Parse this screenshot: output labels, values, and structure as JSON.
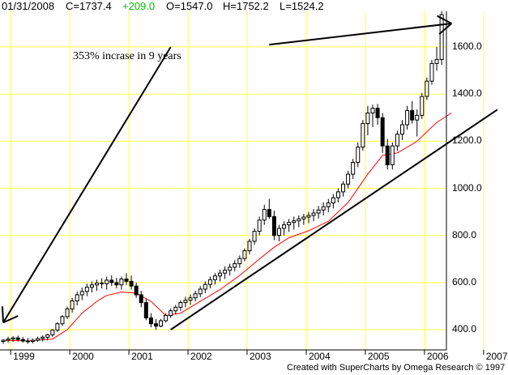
{
  "header": {
    "date": "01/31/2008",
    "close": "C=1737.4",
    "change": "+209.0",
    "open": "O=1547.0",
    "high": "H=1752.2",
    "low": "L=1524.2"
  },
  "annotation": "353% incrase in 9 years",
  "credit": "Created with SuperCharts by Omega Research © 1997",
  "colors": {
    "grid": "#ffff40",
    "candle": "#000000",
    "moving_average": "#ff0000",
    "trendline": "#000000",
    "change_text": "#00c000"
  },
  "chart_data": {
    "type": "candlestick",
    "period": "monthly",
    "x_tick_labels": [
      "1999",
      "2000",
      "2001",
      "2002",
      "2003",
      "2004",
      "2005",
      "2006",
      "2007"
    ],
    "y_tick_labels": [
      "400.0",
      "600.0",
      "800.0",
      "1000.0",
      "1200.0",
      "1400.0",
      "1600.0"
    ],
    "ylim": [
      320,
      1780
    ],
    "y_axis_side": "right",
    "grid": true,
    "start_month": "1998-11",
    "candles": [
      [
        350,
        360,
        340,
        355
      ],
      [
        355,
        370,
        345,
        360
      ],
      [
        360,
        372,
        348,
        365
      ],
      [
        365,
        375,
        350,
        358
      ],
      [
        358,
        368,
        345,
        352
      ],
      [
        352,
        365,
        340,
        350
      ],
      [
        350,
        362,
        342,
        355
      ],
      [
        355,
        370,
        348,
        362
      ],
      [
        362,
        375,
        350,
        368
      ],
      [
        368,
        382,
        355,
        378
      ],
      [
        378,
        402,
        370,
        398
      ],
      [
        398,
        432,
        390,
        425
      ],
      [
        425,
        462,
        415,
        455
      ],
      [
        455,
        498,
        445,
        488
      ],
      [
        488,
        535,
        472,
        522
      ],
      [
        522,
        562,
        502,
        548
      ],
      [
        548,
        578,
        525,
        562
      ],
      [
        562,
        595,
        542,
        580
      ],
      [
        580,
        605,
        558,
        590
      ],
      [
        590,
        612,
        565,
        598
      ],
      [
        598,
        618,
        575,
        595
      ],
      [
        595,
        625,
        570,
        610
      ],
      [
        610,
        630,
        585,
        600
      ],
      [
        600,
        620,
        575,
        590
      ],
      [
        590,
        625,
        570,
        615
      ],
      [
        615,
        640,
        590,
        605
      ],
      [
        605,
        630,
        570,
        585
      ],
      [
        585,
        600,
        535,
        548
      ],
      [
        548,
        565,
        495,
        515
      ],
      [
        515,
        530,
        440,
        450
      ],
      [
        450,
        470,
        410,
        425
      ],
      [
        425,
        445,
        400,
        415
      ],
      [
        415,
        445,
        410,
        438
      ],
      [
        438,
        470,
        430,
        460
      ],
      [
        460,
        490,
        450,
        480
      ],
      [
        480,
        505,
        465,
        495
      ],
      [
        495,
        525,
        480,
        515
      ],
      [
        515,
        540,
        495,
        525
      ],
      [
        525,
        550,
        505,
        535
      ],
      [
        535,
        565,
        520,
        552
      ],
      [
        552,
        585,
        538,
        572
      ],
      [
        572,
        605,
        555,
        592
      ],
      [
        592,
        625,
        575,
        612
      ],
      [
        612,
        640,
        592,
        628
      ],
      [
        628,
        655,
        605,
        640
      ],
      [
        640,
        668,
        615,
        652
      ],
      [
        652,
        680,
        630,
        665
      ],
      [
        665,
        695,
        648,
        680
      ],
      [
        680,
        715,
        662,
        702
      ],
      [
        702,
        745,
        690,
        735
      ],
      [
        735,
        785,
        720,
        775
      ],
      [
        775,
        830,
        760,
        818
      ],
      [
        818,
        880,
        800,
        865
      ],
      [
        865,
        930,
        845,
        910
      ],
      [
        910,
        955,
        870,
        880
      ],
      [
        880,
        905,
        780,
        800
      ],
      [
        800,
        845,
        775,
        830
      ],
      [
        830,
        860,
        800,
        845
      ],
      [
        845,
        870,
        815,
        855
      ],
      [
        855,
        880,
        825,
        862
      ],
      [
        862,
        885,
        835,
        870
      ],
      [
        870,
        892,
        845,
        878
      ],
      [
        878,
        900,
        852,
        885
      ],
      [
        885,
        912,
        860,
        895
      ],
      [
        895,
        925,
        872,
        908
      ],
      [
        908,
        940,
        885,
        922
      ],
      [
        922,
        955,
        898,
        938
      ],
      [
        938,
        975,
        915,
        960
      ],
      [
        960,
        1000,
        940,
        985
      ],
      [
        985,
        1030,
        965,
        1018
      ],
      [
        1018,
        1075,
        1000,
        1060
      ],
      [
        1060,
        1125,
        1040,
        1110
      ],
      [
        1110,
        1195,
        1090,
        1175
      ],
      [
        1175,
        1290,
        1160,
        1275
      ],
      [
        1275,
        1350,
        1225,
        1320
      ],
      [
        1320,
        1355,
        1260,
        1340
      ],
      [
        1340,
        1358,
        1270,
        1300
      ],
      [
        1300,
        1320,
        1150,
        1180
      ],
      [
        1180,
        1210,
        1080,
        1100
      ],
      [
        1100,
        1195,
        1080,
        1180
      ],
      [
        1180,
        1245,
        1160,
        1230
      ],
      [
        1230,
        1290,
        1205,
        1270
      ],
      [
        1270,
        1350,
        1250,
        1330
      ],
      [
        1330,
        1370,
        1275,
        1290
      ],
      [
        1290,
        1335,
        1220,
        1310
      ],
      [
        1310,
        1405,
        1295,
        1390
      ],
      [
        1390,
        1470,
        1375,
        1455
      ],
      [
        1455,
        1545,
        1440,
        1530
      ],
      [
        1530,
        1600,
        1500,
        1547
      ],
      [
        1547,
        1752.2,
        1524.2,
        1737.4
      ]
    ],
    "moving_average": [
      [
        0,
        355
      ],
      [
        5,
        352
      ],
      [
        10,
        360
      ],
      [
        13,
        400
      ],
      [
        16,
        470
      ],
      [
        19,
        520
      ],
      [
        21,
        545
      ],
      [
        24,
        560
      ],
      [
        27,
        555
      ],
      [
        30,
        520
      ],
      [
        33,
        460
      ],
      [
        36,
        470
      ],
      [
        40,
        520
      ],
      [
        44,
        570
      ],
      [
        48,
        630
      ],
      [
        52,
        700
      ],
      [
        55,
        750
      ],
      [
        58,
        790
      ],
      [
        62,
        820
      ],
      [
        66,
        860
      ],
      [
        70,
        940
      ],
      [
        74,
        1060
      ],
      [
        77,
        1140
      ],
      [
        80,
        1150
      ],
      [
        84,
        1200
      ],
      [
        88,
        1280
      ],
      [
        91,
        1320
      ]
    ],
    "trendline": [
      [
        34,
        400
      ],
      [
        90.8,
        1200
      ]
    ],
    "annotation_arrows": [
      {
        "from": [
          34,
          1600
        ],
        "to": [
          0,
          430
        ]
      },
      {
        "from": [
          54,
          1610
        ],
        "to": [
          91,
          1700
        ]
      }
    ]
  }
}
